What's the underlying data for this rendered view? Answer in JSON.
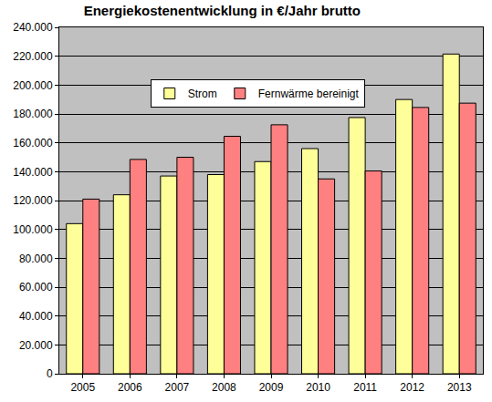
{
  "chart_data": {
    "type": "bar",
    "title": "Energiekostenentwicklung in €/Jahr brutto",
    "categories": [
      "2005",
      "2006",
      "2007",
      "2008",
      "2009",
      "2010",
      "2011",
      "2012",
      "2013"
    ],
    "series": [
      {
        "name": "Strom",
        "color": "#FFFF99",
        "values": [
          104000,
          124000,
          137000,
          138000,
          147000,
          156000,
          177500,
          190000,
          221500
        ]
      },
      {
        "name": "Fernwärme bereinigt",
        "color": "#FF8080",
        "values": [
          121000,
          148500,
          150000,
          164500,
          172500,
          135000,
          140500,
          184500,
          187500
        ]
      }
    ],
    "ylim": [
      0,
      240000
    ],
    "yticks": [
      0,
      {
        "value": 20000,
        "label": "20.000"
      },
      {
        "value": 40000,
        "label": "40.000"
      },
      {
        "value": 60000,
        "label": "60.000"
      },
      {
        "value": 80000,
        "label": "80.000"
      },
      {
        "value": 100000,
        "label": "100.000"
      },
      {
        "value": 120000,
        "label": "120.000"
      },
      {
        "value": 140000,
        "label": "140.000"
      },
      {
        "value": 160000,
        "label": "160.000"
      },
      {
        "value": 180000,
        "label": "180.000"
      },
      {
        "value": 200000,
        "label": "200.000"
      },
      {
        "value": 220000,
        "label": "220.000"
      },
      {
        "value": 240000,
        "label": "240.000"
      }
    ],
    "grid": true,
    "legend": "top"
  }
}
